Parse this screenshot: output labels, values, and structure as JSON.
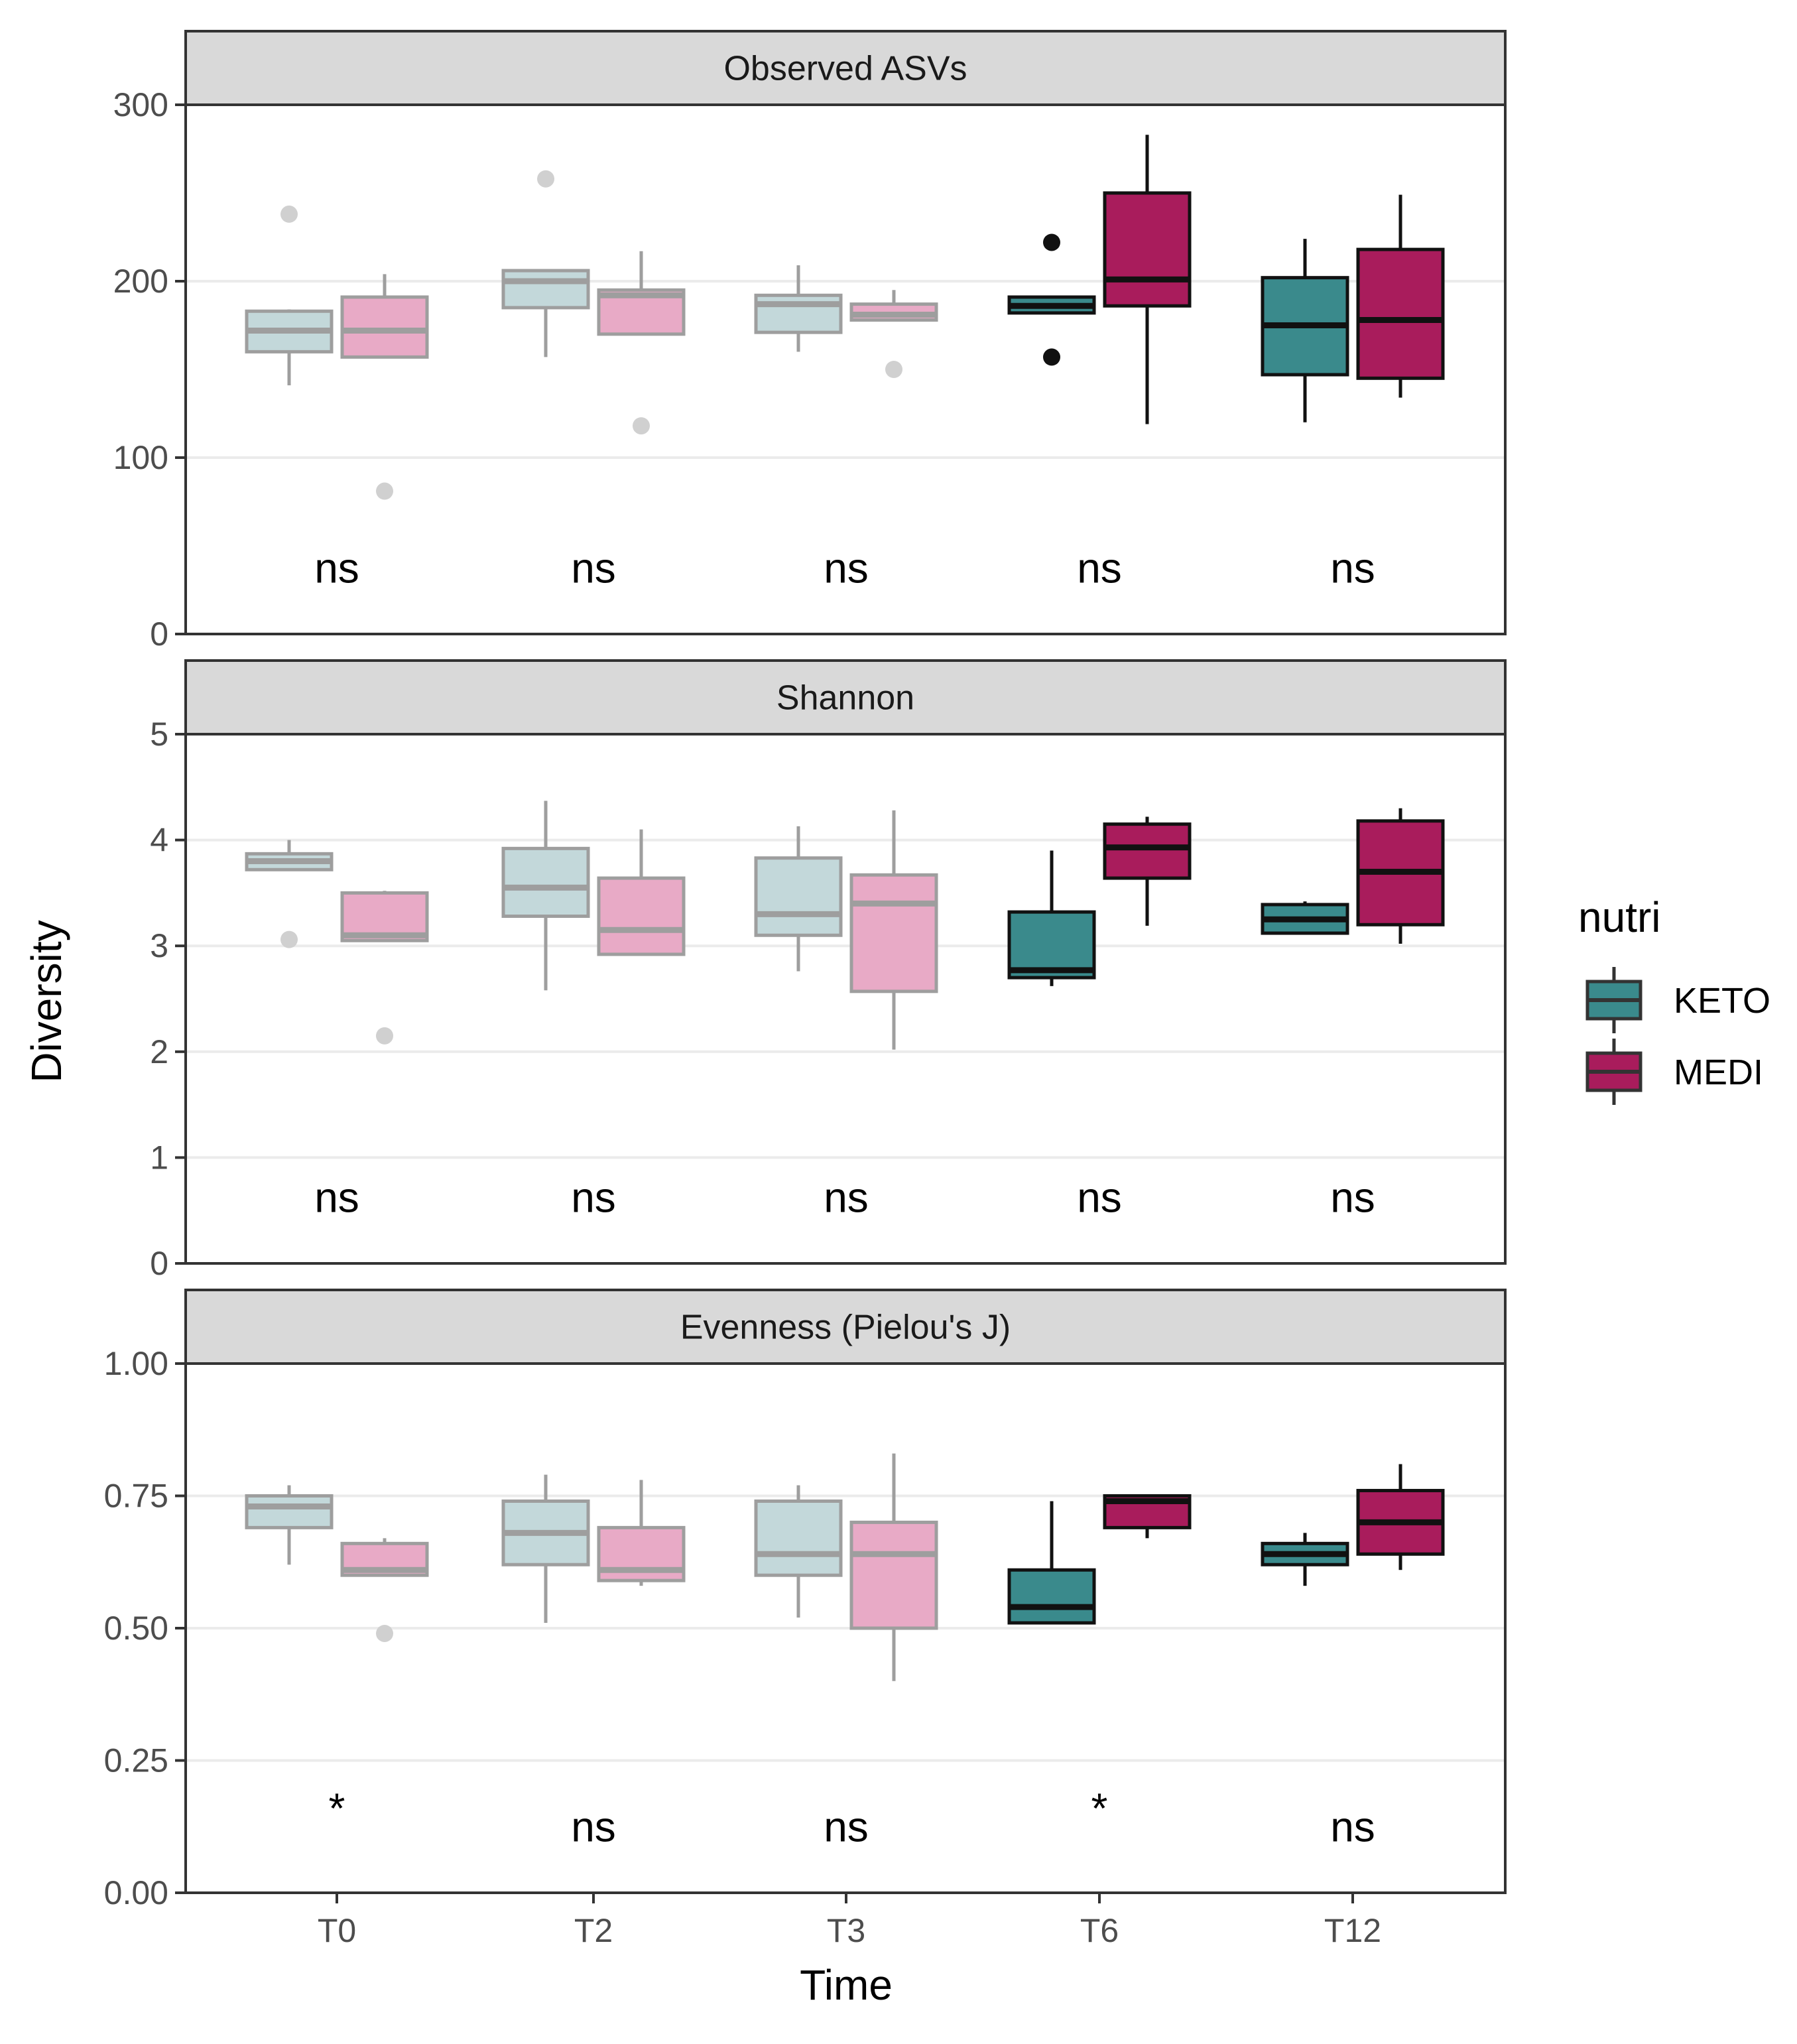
{
  "chart_data": {
    "type": "boxplot",
    "xlabel": "Time",
    "ylabel": "Diversity",
    "categories": [
      "T0",
      "T2",
      "T3",
      "T6",
      "T12"
    ],
    "legend": {
      "title": "nutri",
      "placement": "right",
      "entries": [
        {
          "label": "KETO",
          "color": "#3a8a8c"
        },
        {
          "label": "MEDI",
          "color": "#a91c5c"
        }
      ]
    },
    "colors": {
      "KETO": "#3a8a8c",
      "MEDI": "#a91c5c",
      "KETO_faded": "#c3d8da",
      "MEDI_faded": "#e8aac6",
      "faded_line": "#9e9e9e",
      "faded_point": "#d0d0d0",
      "strong_line": "#111111"
    },
    "panels": [
      {
        "title": "Observed ASVs",
        "ylim": [
          0,
          300
        ],
        "yticks": [
          0,
          100,
          200,
          300
        ],
        "ytick_labels": [
          "0",
          "100",
          "200",
          "300"
        ],
        "significance": [
          "ns",
          "ns",
          "ns",
          "ns",
          "ns"
        ],
        "groups": [
          {
            "time": "T0",
            "nutri": "KETO",
            "faded": true,
            "whisker_low": 141,
            "q1": 160,
            "median": 172,
            "q3": 183,
            "whisker_high": 184,
            "outliers": [
              238
            ]
          },
          {
            "time": "T0",
            "nutri": "MEDI",
            "faded": true,
            "whisker_low": 157,
            "q1": 157,
            "median": 172,
            "q3": 191,
            "whisker_high": 204,
            "outliers": [
              81
            ]
          },
          {
            "time": "T2",
            "nutri": "KETO",
            "faded": true,
            "whisker_low": 157,
            "q1": 185,
            "median": 200,
            "q3": 206,
            "whisker_high": 206,
            "outliers": [
              258
            ]
          },
          {
            "time": "T2",
            "nutri": "MEDI",
            "faded": true,
            "whisker_low": 170,
            "q1": 170,
            "median": 192,
            "q3": 195,
            "whisker_high": 217,
            "outliers": [
              118
            ]
          },
          {
            "time": "T3",
            "nutri": "KETO",
            "faded": true,
            "whisker_low": 160,
            "q1": 171,
            "median": 187,
            "q3": 192,
            "whisker_high": 209,
            "outliers": []
          },
          {
            "time": "T3",
            "nutri": "MEDI",
            "faded": true,
            "whisker_low": 178,
            "q1": 178,
            "median": 181,
            "q3": 187,
            "whisker_high": 195,
            "outliers": [
              150
            ]
          },
          {
            "time": "T6",
            "nutri": "KETO",
            "faded": false,
            "whisker_low": 182,
            "q1": 182,
            "median": 186,
            "q3": 191,
            "whisker_high": 191,
            "outliers": [
              222,
              157
            ]
          },
          {
            "time": "T6",
            "nutri": "MEDI",
            "faded": false,
            "whisker_low": 119,
            "q1": 186,
            "median": 201,
            "q3": 250,
            "whisker_high": 283,
            "outliers": []
          },
          {
            "time": "T12",
            "nutri": "KETO",
            "faded": false,
            "whisker_low": 120,
            "q1": 147,
            "median": 175,
            "q3": 202,
            "whisker_high": 224,
            "outliers": []
          },
          {
            "time": "T12",
            "nutri": "MEDI",
            "faded": false,
            "whisker_low": 134,
            "q1": 145,
            "median": 178,
            "q3": 218,
            "whisker_high": 249,
            "outliers": []
          }
        ]
      },
      {
        "title": "Shannon",
        "ylim": [
          0,
          5
        ],
        "yticks": [
          0,
          1,
          2,
          3,
          4,
          5
        ],
        "ytick_labels": [
          "0",
          "1",
          "2",
          "3",
          "4",
          "5"
        ],
        "significance": [
          "ns",
          "ns",
          "ns",
          "ns",
          "ns"
        ],
        "groups": [
          {
            "time": "T0",
            "nutri": "KETO",
            "faded": true,
            "whisker_low": 3.72,
            "q1": 3.72,
            "median": 3.8,
            "q3": 3.87,
            "whisker_high": 4.0,
            "outliers": [
              3.06
            ]
          },
          {
            "time": "T0",
            "nutri": "MEDI",
            "faded": true,
            "whisker_low": 3.05,
            "q1": 3.05,
            "median": 3.1,
            "q3": 3.5,
            "whisker_high": 3.52,
            "outliers": [
              2.15
            ]
          },
          {
            "time": "T2",
            "nutri": "KETO",
            "faded": true,
            "whisker_low": 2.58,
            "q1": 3.28,
            "median": 3.55,
            "q3": 3.92,
            "whisker_high": 4.37,
            "outliers": []
          },
          {
            "time": "T2",
            "nutri": "MEDI",
            "faded": true,
            "whisker_low": 2.92,
            "q1": 2.92,
            "median": 3.15,
            "q3": 3.64,
            "whisker_high": 4.1,
            "outliers": []
          },
          {
            "time": "T3",
            "nutri": "KETO",
            "faded": true,
            "whisker_low": 2.76,
            "q1": 3.1,
            "median": 3.3,
            "q3": 3.83,
            "whisker_high": 4.13,
            "outliers": []
          },
          {
            "time": "T3",
            "nutri": "MEDI",
            "faded": true,
            "whisker_low": 2.02,
            "q1": 2.57,
            "median": 3.4,
            "q3": 3.67,
            "whisker_high": 4.28,
            "outliers": []
          },
          {
            "time": "T6",
            "nutri": "KETO",
            "faded": false,
            "whisker_low": 2.62,
            "q1": 2.7,
            "median": 2.77,
            "q3": 3.32,
            "whisker_high": 3.9,
            "outliers": []
          },
          {
            "time": "T6",
            "nutri": "MEDI",
            "faded": false,
            "whisker_low": 3.19,
            "q1": 3.64,
            "median": 3.93,
            "q3": 4.15,
            "whisker_high": 4.22,
            "outliers": []
          },
          {
            "time": "T12",
            "nutri": "KETO",
            "faded": false,
            "whisker_low": 3.12,
            "q1": 3.12,
            "median": 3.25,
            "q3": 3.39,
            "whisker_high": 3.42,
            "outliers": []
          },
          {
            "time": "T12",
            "nutri": "MEDI",
            "faded": false,
            "whisker_low": 3.02,
            "q1": 3.2,
            "median": 3.7,
            "q3": 4.18,
            "whisker_high": 4.3,
            "outliers": []
          }
        ]
      },
      {
        "title": "Evenness (Pielou's J)",
        "ylim": [
          0,
          1
        ],
        "yticks": [
          0,
          0.25,
          0.5,
          0.75,
          1.0
        ],
        "ytick_labels": [
          "0.00",
          "0.25",
          "0.50",
          "0.75",
          "1.00"
        ],
        "significance": [
          "*",
          "ns",
          "ns",
          "*",
          "ns"
        ],
        "groups": [
          {
            "time": "T0",
            "nutri": "KETO",
            "faded": true,
            "whisker_low": 0.62,
            "q1": 0.69,
            "median": 0.73,
            "q3": 0.75,
            "whisker_high": 0.77,
            "outliers": []
          },
          {
            "time": "T0",
            "nutri": "MEDI",
            "faded": true,
            "whisker_low": 0.6,
            "q1": 0.6,
            "median": 0.61,
            "q3": 0.66,
            "whisker_high": 0.67,
            "outliers": [
              0.49
            ]
          },
          {
            "time": "T2",
            "nutri": "KETO",
            "faded": true,
            "whisker_low": 0.51,
            "q1": 0.62,
            "median": 0.68,
            "q3": 0.74,
            "whisker_high": 0.79,
            "outliers": []
          },
          {
            "time": "T2",
            "nutri": "MEDI",
            "faded": true,
            "whisker_low": 0.58,
            "q1": 0.59,
            "median": 0.61,
            "q3": 0.69,
            "whisker_high": 0.78,
            "outliers": []
          },
          {
            "time": "T3",
            "nutri": "KETO",
            "faded": true,
            "whisker_low": 0.52,
            "q1": 0.6,
            "median": 0.64,
            "q3": 0.74,
            "whisker_high": 0.77,
            "outliers": []
          },
          {
            "time": "T3",
            "nutri": "MEDI",
            "faded": true,
            "whisker_low": 0.4,
            "q1": 0.5,
            "median": 0.64,
            "q3": 0.7,
            "whisker_high": 0.83,
            "outliers": []
          },
          {
            "time": "T6",
            "nutri": "KETO",
            "faded": false,
            "whisker_low": 0.51,
            "q1": 0.51,
            "median": 0.54,
            "q3": 0.61,
            "whisker_high": 0.74,
            "outliers": []
          },
          {
            "time": "T6",
            "nutri": "MEDI",
            "faded": false,
            "whisker_low": 0.67,
            "q1": 0.69,
            "median": 0.74,
            "q3": 0.75,
            "whisker_high": 0.75,
            "outliers": []
          },
          {
            "time": "T12",
            "nutri": "KETO",
            "faded": false,
            "whisker_low": 0.58,
            "q1": 0.62,
            "median": 0.64,
            "q3": 0.66,
            "whisker_high": 0.68,
            "outliers": []
          },
          {
            "time": "T12",
            "nutri": "MEDI",
            "faded": false,
            "whisker_low": 0.61,
            "q1": 0.64,
            "median": 0.7,
            "q3": 0.76,
            "whisker_high": 0.81,
            "outliers": []
          }
        ]
      }
    ]
  }
}
